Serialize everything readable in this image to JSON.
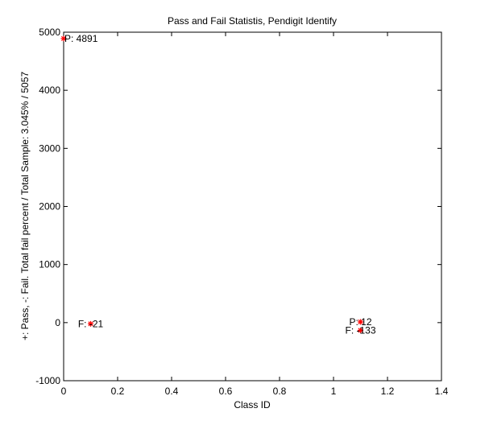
{
  "chart_data": {
    "type": "scatter",
    "title": "Pass and Fail Statistis, Pendigit Identify",
    "xlabel": "Class ID",
    "ylabel": "+: Pass, -: Fail. Total fail percent / Total Sample: 3.045% / 5057",
    "xlim": [
      0,
      1.4
    ],
    "ylim": [
      -1000,
      5000
    ],
    "xticks": [
      "0",
      "0.2",
      "0.4",
      "0.6",
      "0.8",
      "1",
      "1.2",
      "1.4"
    ],
    "yticks": [
      "-1000",
      "0",
      "1000",
      "2000",
      "3000",
      "4000",
      "5000"
    ],
    "grid": false,
    "marker_color": "#ff0000",
    "points": [
      {
        "x": 0,
        "y": 4891,
        "label": "P: 4891"
      },
      {
        "x": 0.1,
        "y": -21,
        "label": "F: -21"
      },
      {
        "x": 1.1,
        "y": 12,
        "label": "P: 12"
      },
      {
        "x": 1.1,
        "y": -133,
        "label": "F: -133"
      }
    ]
  }
}
